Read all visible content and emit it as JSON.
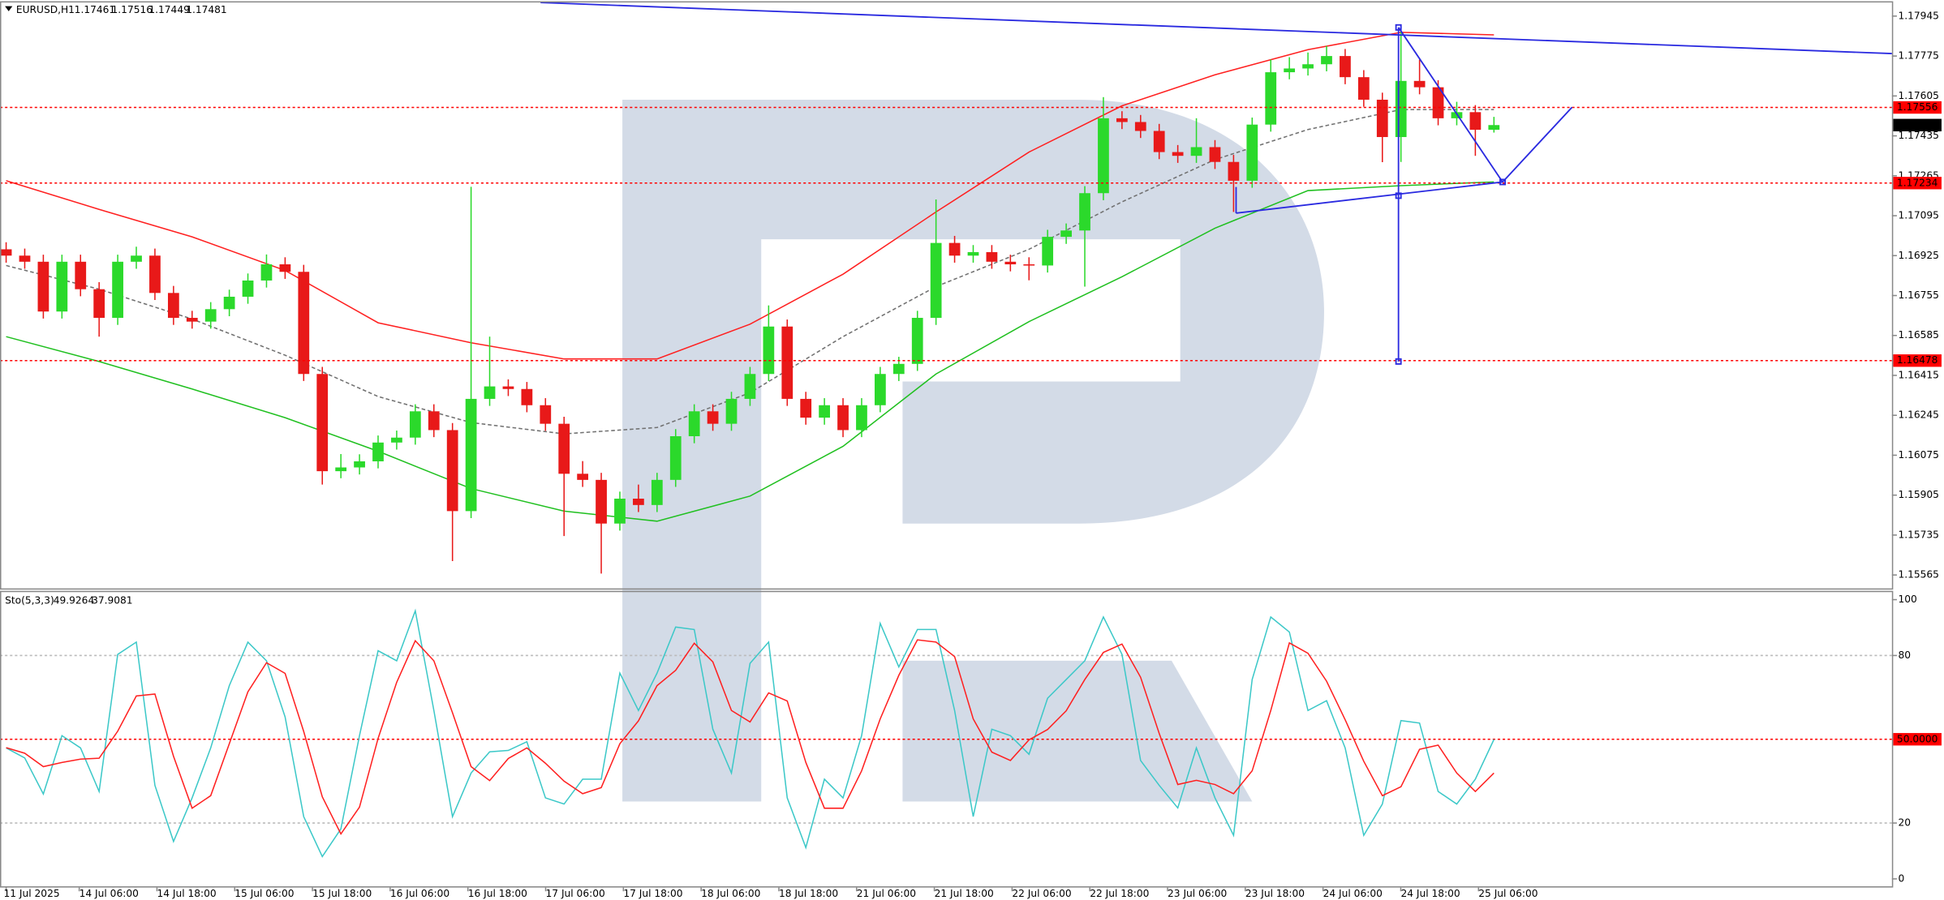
{
  "chart_data": [
    {
      "type": "candlestick",
      "title": "EURUSD,H1",
      "up_color": "#2bd92b",
      "down_color": "#e81919",
      "last_color": "#000000",
      "xlim": [
        -0.33,
        101.4
      ],
      "ylim": [
        1.15508,
        1.18003
      ],
      "yticks": [
        1.17945,
        1.17775,
        1.17605,
        1.17435,
        1.17265,
        1.17095,
        1.16925,
        1.16755,
        1.16585,
        1.16415,
        1.16245,
        1.16075,
        1.15905,
        1.15735,
        1.15565
      ],
      "open": [
        1.16952,
        1.16925,
        1.16899,
        1.16687,
        1.16899,
        1.16782,
        1.1666,
        1.16899,
        1.16925,
        1.16766,
        1.1666,
        1.16644,
        1.16697,
        1.1675,
        1.16819,
        1.16888,
        1.16856,
        1.16421,
        1.16007,
        1.16023,
        1.16049,
        1.16129,
        1.1615,
        1.16262,
        1.16182,
        1.15837,
        1.16315,
        1.16368,
        1.16357,
        1.16288,
        1.16209,
        1.15996,
        1.1597,
        1.15784,
        1.1589,
        1.15863,
        1.1597,
        1.16156,
        1.16262,
        1.16209,
        1.16315,
        1.16421,
        1.16623,
        1.16315,
        1.16235,
        1.16288,
        1.16182,
        1.16288,
        1.16421,
        1.16464,
        1.1666,
        1.16979,
        1.16925,
        1.1694,
        1.16899,
        1.16888,
        1.16883,
        1.17005,
        1.17032,
        1.17191,
        1.1751,
        1.17494,
        1.17456,
        1.17366,
        1.1735,
        1.17387,
        1.17324,
        1.17244,
        1.17483,
        1.17706,
        1.17722,
        1.1774,
        1.17775,
        1.17685,
        1.17589,
        1.1743,
        1.17669,
        1.17642,
        1.1751,
        1.17536,
        1.17461
      ],
      "high": [
        1.16982,
        1.16955,
        1.16929,
        1.16929,
        1.16929,
        1.16812,
        1.16929,
        1.16963,
        1.16955,
        1.16796,
        1.1669,
        1.16727,
        1.1678,
        1.16849,
        1.1693,
        1.16918,
        1.16886,
        1.16451,
        1.1608,
        1.16079,
        1.16159,
        1.1618,
        1.16292,
        1.16292,
        1.16212,
        1.17218,
        1.1658,
        1.16398,
        1.16387,
        1.16318,
        1.16239,
        1.1605,
        1.16,
        1.1592,
        1.1595,
        1.16,
        1.16186,
        1.16292,
        1.16292,
        1.16345,
        1.16451,
        1.16713,
        1.16653,
        1.16345,
        1.16318,
        1.16318,
        1.16318,
        1.16451,
        1.16494,
        1.1669,
        1.17164,
        1.17009,
        1.1697,
        1.1697,
        1.16929,
        1.16918,
        1.17035,
        1.17062,
        1.17221,
        1.176,
        1.1754,
        1.17524,
        1.17486,
        1.17396,
        1.1751,
        1.17417,
        1.17354,
        1.17513,
        1.1776,
        1.1777,
        1.1779,
        1.17818,
        1.17805,
        1.17715,
        1.17619,
        1.17881,
        1.1776,
        1.17672,
        1.1758,
        1.17566,
        1.17516
      ],
      "low": [
        1.16895,
        1.16869,
        1.16657,
        1.16657,
        1.16752,
        1.1658,
        1.1663,
        1.16869,
        1.16736,
        1.1663,
        1.16614,
        1.16614,
        1.16667,
        1.1672,
        1.16789,
        1.16826,
        1.16391,
        1.1595,
        1.15977,
        1.15993,
        1.16019,
        1.16099,
        1.1612,
        1.16152,
        1.15624,
        1.15807,
        1.16285,
        1.16327,
        1.16258,
        1.16179,
        1.15731,
        1.1594,
        1.15571,
        1.15754,
        1.15833,
        1.15833,
        1.1594,
        1.16126,
        1.16179,
        1.16179,
        1.16285,
        1.16391,
        1.16285,
        1.16205,
        1.16205,
        1.16152,
        1.16152,
        1.16258,
        1.16391,
        1.16434,
        1.1663,
        1.16895,
        1.16895,
        1.16869,
        1.16858,
        1.1682,
        1.16853,
        1.16975,
        1.16793,
        1.17161,
        1.17464,
        1.17426,
        1.17336,
        1.1732,
        1.1732,
        1.17294,
        1.17111,
        1.17214,
        1.17453,
        1.17676,
        1.17692,
        1.1771,
        1.17655,
        1.17559,
        1.17323,
        1.17324,
        1.17612,
        1.1748,
        1.1748,
        1.1735,
        1.17449
      ],
      "close": [
        1.16925,
        1.16899,
        1.16687,
        1.16899,
        1.16782,
        1.1666,
        1.16899,
        1.16925,
        1.16766,
        1.1666,
        1.16644,
        1.16697,
        1.1675,
        1.16819,
        1.16888,
        1.16856,
        1.16421,
        1.16007,
        1.16023,
        1.16049,
        1.16129,
        1.1615,
        1.16262,
        1.16182,
        1.15837,
        1.16315,
        1.16368,
        1.16357,
        1.16288,
        1.16209,
        1.15996,
        1.1597,
        1.15784,
        1.1589,
        1.15863,
        1.1597,
        1.16156,
        1.16262,
        1.16209,
        1.16315,
        1.16421,
        1.16623,
        1.16315,
        1.16235,
        1.16288,
        1.16182,
        1.16288,
        1.16421,
        1.16464,
        1.1666,
        1.16979,
        1.16925,
        1.1694,
        1.16899,
        1.16888,
        1.16883,
        1.17005,
        1.17032,
        1.17191,
        1.1751,
        1.17494,
        1.17456,
        1.17366,
        1.1735,
        1.17387,
        1.17324,
        1.17244,
        1.17483,
        1.17706,
        1.17722,
        1.1774,
        1.17775,
        1.17685,
        1.17589,
        1.1743,
        1.17669,
        1.17642,
        1.1751,
        1.17536,
        1.17461,
        1.17481
      ],
      "overlays": [
        {
          "color": "#ff2020",
          "style": "solid",
          "x": [
            0,
            5,
            10,
            15,
            20,
            25,
            30,
            35,
            40,
            45,
            50,
            55,
            60,
            65,
            70,
            75,
            80
          ],
          "values": [
            1.17244,
            1.17122,
            1.17005,
            1.16862,
            1.16639,
            1.16554,
            1.16485,
            1.16485,
            1.16633,
            1.16846,
            1.17111,
            1.17366,
            1.17563,
            1.17695,
            1.17802,
            1.17876,
            1.17865
          ]
        },
        {
          "color": "#20c020",
          "style": "solid",
          "x": [
            0,
            5,
            10,
            15,
            20,
            25,
            30,
            35,
            40,
            45,
            50,
            55,
            60,
            65,
            70,
            75,
            80
          ],
          "values": [
            1.1658,
            1.16474,
            1.16357,
            1.16235,
            1.16092,
            1.15933,
            1.15837,
            1.15794,
            1.15901,
            1.16113,
            1.16421,
            1.16644,
            1.16835,
            1.17042,
            1.17202,
            1.17223,
            1.17239
          ]
        },
        {
          "color": "#707070",
          "style": "dashed",
          "x": [
            0,
            5,
            10,
            15,
            20,
            25,
            30,
            35,
            40,
            45,
            50,
            55,
            60,
            65,
            70,
            75,
            80
          ],
          "values": [
            1.16883,
            1.16782,
            1.16655,
            1.16501,
            1.16325,
            1.16214,
            1.16166,
            1.16193,
            1.16341,
            1.1658,
            1.16793,
            1.16952,
            1.17154,
            1.17334,
            1.17462,
            1.17547,
            1.17547
          ]
        }
      ],
      "levels": [
        {
          "value": 1.17556,
          "color": "#ff0000"
        },
        {
          "value": 1.17234,
          "color": "#ff0000"
        },
        {
          "value": 1.16478,
          "color": "#ff0000"
        }
      ]
    },
    {
      "type": "line",
      "title": "Sto(5,3,3)",
      "xlim": [
        -0.33,
        101.4
      ],
      "ylim": [
        -3.1,
        102.7
      ],
      "yticks": [
        0,
        20,
        80,
        100
      ],
      "grid": true,
      "xticks": [
        {
          "value": 0,
          "label": "11 Jul 2025"
        },
        {
          "value": 3.93,
          "label": "14 Jul 06:00"
        },
        {
          "value": 8.11,
          "label": "14 Jul 18:00"
        },
        {
          "value": 12.29,
          "label": "15 Jul 06:00"
        },
        {
          "value": 16.47,
          "label": "15 Jul 18:00"
        },
        {
          "value": 20.65,
          "label": "16 Jul 06:00"
        },
        {
          "value": 24.83,
          "label": "16 Jul 18:00"
        },
        {
          "value": 29.01,
          "label": "17 Jul 06:00"
        },
        {
          "value": 33.19,
          "label": "17 Jul 18:00"
        },
        {
          "value": 37.37,
          "label": "18 Jul 06:00"
        },
        {
          "value": 41.55,
          "label": "18 Jul 18:00"
        },
        {
          "value": 45.73,
          "label": "21 Jul 06:00"
        },
        {
          "value": 49.91,
          "label": "21 Jul 18:00"
        },
        {
          "value": 54.09,
          "label": "22 Jul 06:00"
        },
        {
          "value": 58.27,
          "label": "22 Jul 18:00"
        },
        {
          "value": 62.45,
          "label": "23 Jul 06:00"
        },
        {
          "value": 66.63,
          "label": "23 Jul 18:00"
        },
        {
          "value": 70.81,
          "label": "24 Jul 06:00"
        },
        {
          "value": 74.99,
          "label": "24 Jul 18:00"
        },
        {
          "value": 79.17,
          "label": "25 Jul 06:00"
        }
      ],
      "series": [
        {
          "color": "#3cc8c8",
          "values": [
            46.9,
            43.3,
            30.4,
            51.3,
            46.9,
            31.3,
            80.4,
            84.8,
            33.5,
            13.4,
            29.0,
            46.9,
            69.2,
            84.8,
            78.1,
            58.0,
            22.3,
            8.0,
            17.9,
            51.3,
            81.7,
            78.1,
            96.0,
            60.3,
            22.3,
            37.9,
            45.5,
            46.0,
            49.1,
            29.0,
            26.8,
            35.7,
            35.7,
            73.7,
            60.3,
            73.7,
            90.2,
            89.3,
            53.6,
            37.9,
            77.2,
            84.8,
            29.0,
            11.2,
            35.7,
            29.0,
            51.3,
            91.5,
            75.9,
            89.3,
            89.3,
            60.3,
            22.3,
            53.6,
            51.3,
            44.6,
            64.7,
            71.4,
            78.1,
            93.8,
            80.4,
            42.4,
            33.5,
            25.4,
            46.9,
            29.0,
            15.6,
            71.4,
            93.8,
            88.4,
            60.3,
            63.8,
            46.9,
            15.6,
            26.8,
            56.7,
            55.8,
            31.3,
            26.8,
            35.7,
            49.9264
          ]
        },
        {
          "color": "#ff2020",
          "values": [
            47,
            45,
            40.2,
            41.7,
            42.9,
            43.2,
            52.9,
            65.5,
            66.2,
            43.9,
            25.3,
            29.8,
            48.4,
            67.0,
            77.4,
            73.6,
            52.8,
            29.4,
            16.1,
            25.7,
            50.3,
            70.4,
            85.3,
            78.1,
            59.5,
            40.2,
            35.2,
            43.1,
            46.9,
            41.4,
            35.0,
            30.5,
            32.7,
            48.4,
            56.6,
            69.2,
            74.7,
            84.4,
            77.7,
            60.3,
            56.2,
            66.6,
            63.7,
            41.7,
            25.3,
            25.3,
            38.7,
            57.3,
            72.9,
            85.6,
            84.8,
            79.6,
            57.3,
            45.4,
            42.4,
            49.8,
            53.5,
            60.2,
            71.4,
            81.1,
            84.1,
            72.2,
            52.1,
            33.8,
            35.3,
            33.8,
            30.5,
            38.7,
            60.3,
            84.5,
            80.8,
            70.8,
            57.0,
            42.1,
            29.8,
            33.0,
            46.4,
            47.9,
            37.9,
            31.3,
            37.9081
          ]
        }
      ],
      "levels": [
        {
          "value": 50,
          "label": "50.0000",
          "color": "#ff0000"
        }
      ]
    }
  ]
}
